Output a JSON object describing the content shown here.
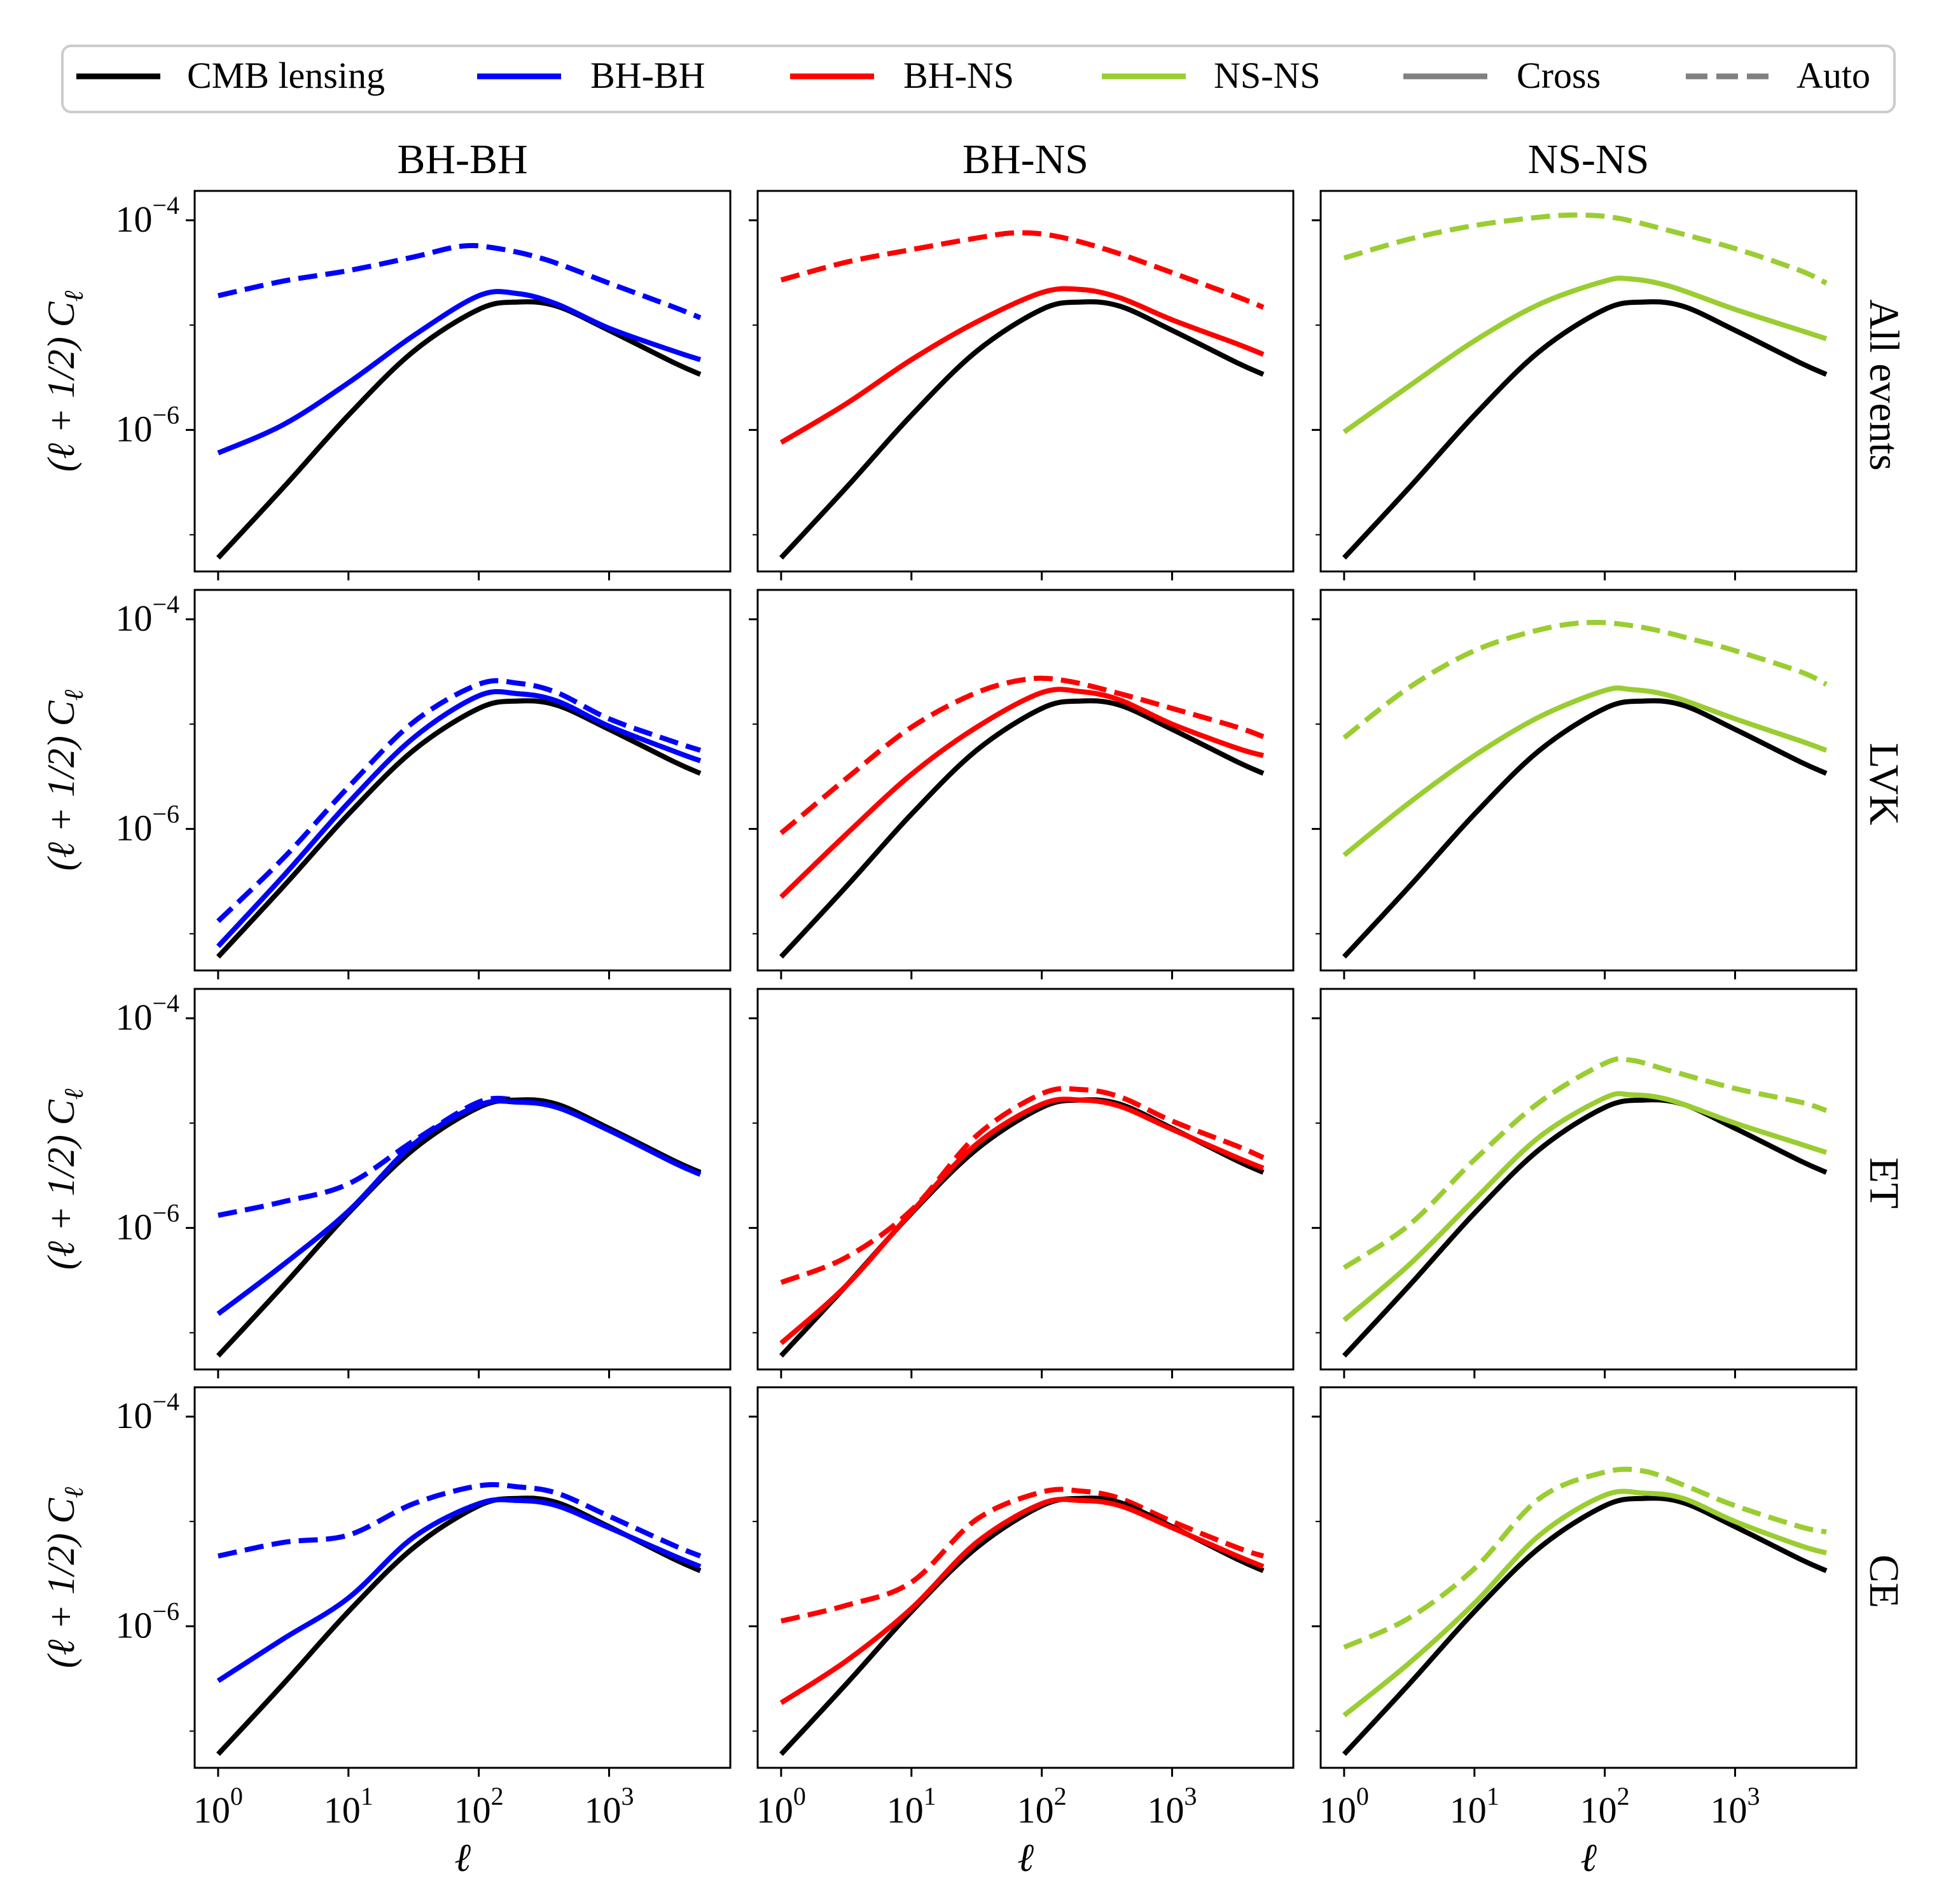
{
  "colors": {
    "cmb": "#000000",
    "bhbh": "#0000ff",
    "bhns": "#ff0000",
    "nsns": "#9acd32",
    "legend_style": "#808080",
    "axis": "#000000",
    "legend_border": "#cccccc"
  },
  "legend": {
    "items": [
      {
        "label": "CMB lensing",
        "color_key": "cmb",
        "dashed": false
      },
      {
        "label": "BH-BH",
        "color_key": "bhbh",
        "dashed": false
      },
      {
        "label": "BH-NS",
        "color_key": "bhns",
        "dashed": false
      },
      {
        "label": "NS-NS",
        "color_key": "nsns",
        "dashed": false
      },
      {
        "label": "Cross",
        "color_key": "legend_style",
        "dashed": false
      },
      {
        "label": "Auto",
        "color_key": "legend_style",
        "dashed": true
      }
    ]
  },
  "axes_text": {
    "xlabel": "ℓ",
    "ylabel": "(ℓ + 1/2) C",
    "ylabel_sub": "ℓ",
    "x_tick_labels": [
      {
        "base": "10",
        "exp": "0"
      },
      {
        "base": "10",
        "exp": "1"
      },
      {
        "base": "10",
        "exp": "2"
      },
      {
        "base": "10",
        "exp": "3"
      }
    ],
    "y_tick_labels": [
      {
        "base": "10",
        "exp": "−6"
      },
      {
        "base": "10",
        "exp": "−4"
      }
    ]
  },
  "chart_data": {
    "type": "line",
    "xscale": "log",
    "yscale": "log",
    "x_log_range": [
      -0.18,
      3.93
    ],
    "y_log_range": [
      -7.35,
      -3.72
    ],
    "x_ticks_log": [
      0,
      1,
      2,
      3
    ],
    "y_ticks_log": [
      -6,
      -4
    ],
    "x_minor_ticks_log": [],
    "y_minor_ticks_log": [
      -7,
      -5
    ],
    "col_titles": [
      "BH-BH",
      "BH-NS",
      "NS-NS"
    ],
    "row_labels": [
      "All events",
      "LVK",
      "ET",
      "CE"
    ],
    "col_color_keys": [
      "bhbh",
      "bhns",
      "nsns"
    ],
    "cmb_lensing_log10": [
      [
        0,
        -7.22
      ],
      [
        0.5,
        -6.55
      ],
      [
        1,
        -5.86
      ],
      [
        1.5,
        -5.25
      ],
      [
        2,
        -4.85
      ],
      [
        2.3,
        -4.78
      ],
      [
        2.6,
        -4.82
      ],
      [
        3,
        -5.05
      ],
      [
        3.5,
        -5.36
      ],
      [
        3.7,
        -5.47
      ]
    ],
    "panels": [
      [
        {
          "cross": [
            [
              0,
              -6.22
            ],
            [
              0.5,
              -5.95
            ],
            [
              1,
              -5.55
            ],
            [
              1.5,
              -5.1
            ],
            [
              2,
              -4.72
            ],
            [
              2.3,
              -4.7
            ],
            [
              2.6,
              -4.8
            ],
            [
              3,
              -5.03
            ],
            [
              3.5,
              -5.25
            ],
            [
              3.7,
              -5.33
            ]
          ],
          "auto": [
            [
              0,
              -4.72
            ],
            [
              0.5,
              -4.58
            ],
            [
              1,
              -4.48
            ],
            [
              1.5,
              -4.35
            ],
            [
              1.85,
              -4.25
            ],
            [
              2.1,
              -4.26
            ],
            [
              2.5,
              -4.37
            ],
            [
              3,
              -4.6
            ],
            [
              3.5,
              -4.83
            ],
            [
              3.7,
              -4.93
            ]
          ]
        },
        {
          "cross": [
            [
              0,
              -6.12
            ],
            [
              0.5,
              -5.75
            ],
            [
              1,
              -5.33
            ],
            [
              1.5,
              -4.97
            ],
            [
              2,
              -4.69
            ],
            [
              2.3,
              -4.66
            ],
            [
              2.6,
              -4.74
            ],
            [
              3,
              -4.95
            ],
            [
              3.5,
              -5.18
            ],
            [
              3.7,
              -5.28
            ]
          ],
          "auto": [
            [
              0,
              -4.57
            ],
            [
              0.5,
              -4.4
            ],
            [
              1,
              -4.28
            ],
            [
              1.5,
              -4.17
            ],
            [
              1.8,
              -4.12
            ],
            [
              2.1,
              -4.15
            ],
            [
              2.5,
              -4.28
            ],
            [
              3,
              -4.5
            ],
            [
              3.5,
              -4.73
            ],
            [
              3.7,
              -4.83
            ]
          ]
        },
        {
          "cross": [
            [
              0,
              -6.02
            ],
            [
              0.5,
              -5.58
            ],
            [
              1,
              -5.15
            ],
            [
              1.5,
              -4.8
            ],
            [
              2,
              -4.58
            ],
            [
              2.2,
              -4.56
            ],
            [
              2.5,
              -4.63
            ],
            [
              3,
              -4.85
            ],
            [
              3.5,
              -5.05
            ],
            [
              3.7,
              -5.13
            ]
          ],
          "auto": [
            [
              0,
              -4.36
            ],
            [
              0.5,
              -4.18
            ],
            [
              1,
              -4.05
            ],
            [
              1.5,
              -3.97
            ],
            [
              1.8,
              -3.95
            ],
            [
              2.1,
              -3.98
            ],
            [
              2.5,
              -4.1
            ],
            [
              3,
              -4.27
            ],
            [
              3.5,
              -4.48
            ],
            [
              3.7,
              -4.6
            ]
          ]
        }
      ],
      [
        {
          "cross": [
            [
              0,
              -7.12
            ],
            [
              0.5,
              -6.45
            ],
            [
              1,
              -5.75
            ],
            [
              1.5,
              -5.13
            ],
            [
              2,
              -4.73
            ],
            [
              2.3,
              -4.71
            ],
            [
              2.6,
              -4.78
            ],
            [
              3,
              -5.02
            ],
            [
              3.5,
              -5.26
            ],
            [
              3.7,
              -5.35
            ]
          ],
          "auto": [
            [
              0,
              -6.88
            ],
            [
              0.5,
              -6.28
            ],
            [
              1,
              -5.6
            ],
            [
              1.5,
              -4.98
            ],
            [
              2,
              -4.62
            ],
            [
              2.3,
              -4.61
            ],
            [
              2.6,
              -4.7
            ],
            [
              3,
              -4.95
            ],
            [
              3.5,
              -5.17
            ],
            [
              3.7,
              -5.25
            ]
          ]
        },
        {
          "cross": [
            [
              0,
              -6.65
            ],
            [
              0.5,
              -6.05
            ],
            [
              1,
              -5.48
            ],
            [
              1.5,
              -5.03
            ],
            [
              2,
              -4.7
            ],
            [
              2.3,
              -4.69
            ],
            [
              2.6,
              -4.77
            ],
            [
              3,
              -5
            ],
            [
              3.5,
              -5.23
            ],
            [
              3.7,
              -5.3
            ]
          ],
          "auto": [
            [
              0,
              -6.04
            ],
            [
              0.5,
              -5.52
            ],
            [
              1,
              -5.03
            ],
            [
              1.5,
              -4.7
            ],
            [
              1.9,
              -4.57
            ],
            [
              2.2,
              -4.59
            ],
            [
              2.6,
              -4.71
            ],
            [
              3,
              -4.85
            ],
            [
              3.5,
              -5.03
            ],
            [
              3.7,
              -5.12
            ]
          ]
        },
        {
          "cross": [
            [
              0,
              -6.25
            ],
            [
              0.5,
              -5.75
            ],
            [
              1,
              -5.3
            ],
            [
              1.5,
              -4.93
            ],
            [
              2,
              -4.68
            ],
            [
              2.2,
              -4.67
            ],
            [
              2.5,
              -4.73
            ],
            [
              3,
              -4.95
            ],
            [
              3.5,
              -5.16
            ],
            [
              3.7,
              -5.25
            ]
          ],
          "auto": [
            [
              0,
              -5.13
            ],
            [
              0.5,
              -4.65
            ],
            [
              1,
              -4.3
            ],
            [
              1.5,
              -4.1
            ],
            [
              1.9,
              -4.03
            ],
            [
              2.3,
              -4.08
            ],
            [
              2.7,
              -4.2
            ],
            [
              3,
              -4.3
            ],
            [
              3.5,
              -4.5
            ],
            [
              3.7,
              -4.62
            ]
          ]
        }
      ],
      [
        {
          "cross": [
            [
              0,
              -6.82
            ],
            [
              0.5,
              -6.35
            ],
            [
              1,
              -5.84
            ],
            [
              1.5,
              -5.2
            ],
            [
              2,
              -4.83
            ],
            [
              2.3,
              -4.8
            ],
            [
              2.6,
              -4.85
            ],
            [
              3,
              -5.07
            ],
            [
              3.5,
              -5.38
            ],
            [
              3.7,
              -5.49
            ]
          ],
          "auto": [
            [
              0,
              -5.88
            ],
            [
              0.5,
              -5.75
            ],
            [
              1,
              -5.58
            ],
            [
              1.5,
              -5.17
            ],
            [
              2,
              -4.8
            ],
            [
              2.3,
              -4.78
            ],
            [
              2.6,
              -4.83
            ],
            [
              3,
              -5.06
            ],
            [
              3.5,
              -5.37
            ],
            [
              3.7,
              -5.47
            ]
          ]
        },
        {
          "cross": [
            [
              0,
              -7.1
            ],
            [
              0.5,
              -6.55
            ],
            [
              1,
              -5.85
            ],
            [
              1.5,
              -5.2
            ],
            [
              2,
              -4.82
            ],
            [
              2.3,
              -4.78
            ],
            [
              2.6,
              -4.84
            ],
            [
              3,
              -5.06
            ],
            [
              3.5,
              -5.33
            ],
            [
              3.7,
              -5.43
            ]
          ],
          "auto": [
            [
              0,
              -6.52
            ],
            [
              0.5,
              -6.28
            ],
            [
              1,
              -5.83
            ],
            [
              1.5,
              -5.12
            ],
            [
              2,
              -4.72
            ],
            [
              2.3,
              -4.68
            ],
            [
              2.6,
              -4.75
            ],
            [
              3,
              -4.98
            ],
            [
              3.5,
              -5.22
            ],
            [
              3.7,
              -5.33
            ]
          ]
        },
        {
          "cross": [
            [
              0,
              -6.88
            ],
            [
              0.5,
              -6.35
            ],
            [
              1,
              -5.73
            ],
            [
              1.5,
              -5.13
            ],
            [
              2,
              -4.76
            ],
            [
              2.2,
              -4.73
            ],
            [
              2.5,
              -4.78
            ],
            [
              3,
              -5
            ],
            [
              3.5,
              -5.2
            ],
            [
              3.7,
              -5.28
            ]
          ],
          "auto": [
            [
              0,
              -6.38
            ],
            [
              0.5,
              -5.97
            ],
            [
              1,
              -5.35
            ],
            [
              1.5,
              -4.8
            ],
            [
              2,
              -4.43
            ],
            [
              2.2,
              -4.4
            ],
            [
              2.5,
              -4.5
            ],
            [
              3,
              -4.67
            ],
            [
              3.5,
              -4.8
            ],
            [
              3.7,
              -4.88
            ]
          ]
        }
      ],
      [
        {
          "cross": [
            [
              0,
              -6.52
            ],
            [
              0.5,
              -6.12
            ],
            [
              1,
              -5.73
            ],
            [
              1.5,
              -5.15
            ],
            [
              2,
              -4.83
            ],
            [
              2.3,
              -4.8
            ],
            [
              2.6,
              -4.85
            ],
            [
              3,
              -5.06
            ],
            [
              3.5,
              -5.33
            ],
            [
              3.7,
              -5.43
            ]
          ],
          "auto": [
            [
              0,
              -5.33
            ],
            [
              0.5,
              -5.2
            ],
            [
              1,
              -5.13
            ],
            [
              1.5,
              -4.83
            ],
            [
              2,
              -4.66
            ],
            [
              2.3,
              -4.67
            ],
            [
              2.6,
              -4.73
            ],
            [
              3,
              -4.95
            ],
            [
              3.5,
              -5.23
            ],
            [
              3.7,
              -5.33
            ]
          ]
        },
        {
          "cross": [
            [
              0,
              -6.73
            ],
            [
              0.5,
              -6.33
            ],
            [
              1,
              -5.83
            ],
            [
              1.5,
              -5.2
            ],
            [
              2,
              -4.83
            ],
            [
              2.3,
              -4.8
            ],
            [
              2.6,
              -4.85
            ],
            [
              3,
              -5.06
            ],
            [
              3.5,
              -5.33
            ],
            [
              3.7,
              -5.43
            ]
          ],
          "auto": [
            [
              0,
              -5.95
            ],
            [
              0.5,
              -5.8
            ],
            [
              1,
              -5.58
            ],
            [
              1.5,
              -4.98
            ],
            [
              2,
              -4.72
            ],
            [
              2.3,
              -4.71
            ],
            [
              2.6,
              -4.78
            ],
            [
              3,
              -5
            ],
            [
              3.5,
              -5.25
            ],
            [
              3.7,
              -5.33
            ]
          ]
        },
        {
          "cross": [
            [
              0,
              -6.85
            ],
            [
              0.5,
              -6.35
            ],
            [
              1,
              -5.78
            ],
            [
              1.5,
              -5.13
            ],
            [
              2,
              -4.75
            ],
            [
              2.3,
              -4.73
            ],
            [
              2.6,
              -4.78
            ],
            [
              3,
              -5
            ],
            [
              3.5,
              -5.23
            ],
            [
              3.7,
              -5.3
            ]
          ],
          "auto": [
            [
              0,
              -6.2
            ],
            [
              0.5,
              -5.92
            ],
            [
              1,
              -5.45
            ],
            [
              1.5,
              -4.78
            ],
            [
              2,
              -4.53
            ],
            [
              2.3,
              -4.52
            ],
            [
              2.6,
              -4.65
            ],
            [
              3,
              -4.85
            ],
            [
              3.5,
              -5.05
            ],
            [
              3.7,
              -5.1
            ]
          ]
        }
      ]
    ]
  }
}
